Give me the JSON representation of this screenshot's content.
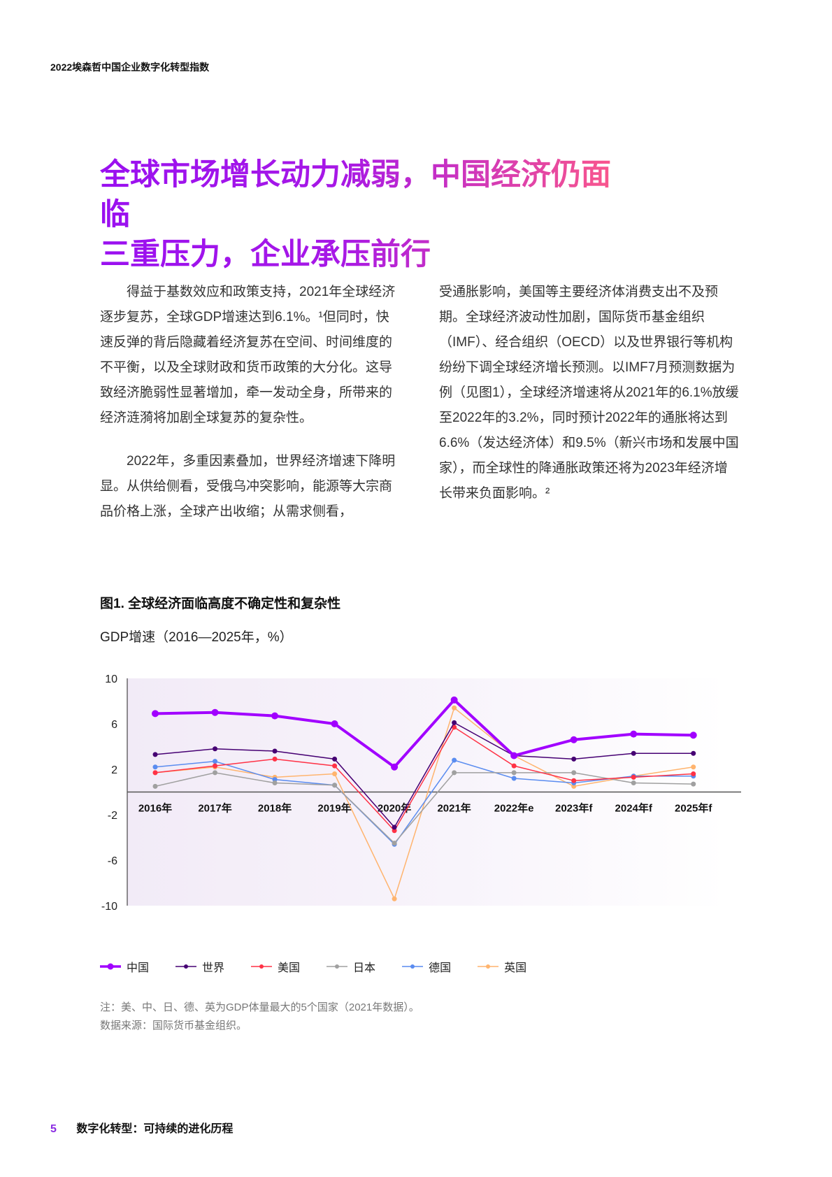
{
  "header": {
    "running_title": "2022埃森哲中国企业数字化转型指数"
  },
  "title": {
    "line1": "全球市场增长动力减弱，中国经济仍面临",
    "line2": "三重压力，企业承压前行"
  },
  "body": {
    "col1": [
      "得益于基数效应和政策支持，2021年全球经济逐步复苏，全球GDP增速达到6.1%。¹但同时，快速反弹的背后隐藏着经济复苏在空间、时间维度的不平衡，以及全球财政和货币政策的大分化。这导致经济脆弱性显著增加，牵一发动全身，所带来的经济涟漪将加剧全球复苏的复杂性。",
      "2022年，多重因素叠加，世界经济增速下降明显。从供给侧看，受俄乌冲突影响，能源等大宗商品价格上涨，全球产出收缩；从需求侧看，"
    ],
    "col2": [
      "受通胀影响，美国等主要经济体消费支出不及预期。全球经济波动性加剧，国际货币基金组织（IMF）、经合组织（OECD）以及世界银行等机构纷纷下调全球经济增长预测。以IMF7月预测数据为例（见图1），全球经济增速将从2021年的6.1%放缓至2022年的3.2%，同时预计2022年的通胀将达到6.6%（发达经济体）和9.5%（新兴市场和发展中国家），而全球性的降通胀政策还将为2023年经济增长带来负面影响。²"
    ]
  },
  "figure": {
    "title": "图1. 全球经济面临高度不确定性和复杂性",
    "subtitle": "GDP增速（2016—2025年，%）"
  },
  "notes": {
    "note": "注：美、中、日、德、英为GDP体量最大的5个国家（2021年数据）。",
    "source": "数据来源：国际货币基金组织。"
  },
  "footer": {
    "page_number": "5",
    "section": "数字化转型：可持续的进化历程"
  },
  "chart_data": {
    "type": "line",
    "title": "图1. 全球经济面临高度不确定性和复杂性",
    "ylabel": "GDP增速（2016—2025年，%）",
    "xlabel": "",
    "categories": [
      "2016年",
      "2017年",
      "2018年",
      "2019年",
      "2020年",
      "2021年",
      "2022年e",
      "2023年f",
      "2024年f",
      "2025年f"
    ],
    "yticks": [
      10,
      6,
      2,
      -2,
      -6,
      -10
    ],
    "ylim": [
      -10,
      10
    ],
    "grid": false,
    "legend_position": "bottom",
    "series": [
      {
        "name": "中国",
        "color": "#a100ff",
        "width": 4,
        "r": 5,
        "values": [
          6.9,
          7.0,
          6.7,
          6.0,
          2.2,
          8.1,
          3.2,
          4.6,
          5.1,
          5.0
        ]
      },
      {
        "name": "世界",
        "color": "#460073",
        "width": 1.5,
        "r": 3.5,
        "values": [
          3.3,
          3.8,
          3.6,
          2.9,
          -3.1,
          6.1,
          3.2,
          2.9,
          3.4,
          3.4
        ]
      },
      {
        "name": "美国",
        "color": "#ff3246",
        "width": 1.5,
        "r": 3.5,
        "values": [
          1.7,
          2.3,
          2.9,
          2.3,
          -3.4,
          5.7,
          2.3,
          1.0,
          1.3,
          1.6
        ]
      },
      {
        "name": "日本",
        "color": "#a0a0a0",
        "width": 1.5,
        "r": 3.5,
        "values": [
          0.5,
          1.7,
          0.8,
          0.6,
          -4.5,
          1.7,
          1.7,
          1.7,
          0.8,
          0.7
        ]
      },
      {
        "name": "德国",
        "color": "#5a8cf0",
        "width": 1.5,
        "r": 3.5,
        "values": [
          2.2,
          2.7,
          1.1,
          0.6,
          -4.6,
          2.8,
          1.2,
          0.8,
          1.4,
          1.4
        ]
      },
      {
        "name": "英国",
        "color": "#ffb46e",
        "width": 1.5,
        "r": 3.5,
        "values": [
          1.7,
          2.2,
          1.3,
          1.6,
          -9.4,
          7.4,
          3.2,
          0.5,
          1.4,
          2.2
        ]
      }
    ]
  }
}
